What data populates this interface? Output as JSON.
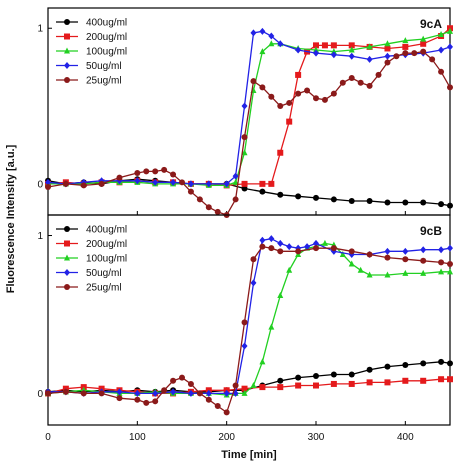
{
  "chart_data": {
    "type": "line",
    "xlabel": "Time [min]",
    "ylabel": "Fluorescence Intensity [a.u.]",
    "x_ticks": [
      0,
      100,
      200,
      300,
      400
    ],
    "xlim": [
      0,
      450
    ],
    "colors": {
      "400ug/ml": "#000000",
      "200ug/ml": "#e41a1c",
      "100ug/ml": "#22d022",
      "50ug/ml": "#2222e6",
      "25ug/ml": "#8b1a1a"
    },
    "panels": [
      {
        "label": "9cA",
        "y_ticks": [
          0,
          1
        ],
        "ylim": [
          -0.2,
          1.13
        ],
        "legend_position": "top-left",
        "series": [
          {
            "name": "400ug/ml",
            "marker": "circle",
            "x": [
              0,
              20,
              40,
              60,
              80,
              100,
              120,
              140,
              160,
              180,
              200,
              220,
              240,
              260,
              280,
              300,
              320,
              340,
              360,
              380,
              400,
              420,
              440,
              450
            ],
            "y": [
              0.02,
              0.0,
              0.01,
              0.0,
              0.02,
              0.03,
              0.02,
              0.01,
              0.0,
              0.0,
              0.0,
              -0.03,
              -0.05,
              -0.07,
              -0.08,
              -0.09,
              -0.1,
              -0.11,
              -0.11,
              -0.12,
              -0.12,
              -0.12,
              -0.13,
              -0.14
            ]
          },
          {
            "name": "200ug/ml",
            "marker": "square",
            "x": [
              0,
              20,
              40,
              60,
              80,
              100,
              120,
              140,
              160,
              180,
              200,
              220,
              240,
              250,
              260,
              270,
              280,
              290,
              300,
              310,
              320,
              340,
              360,
              380,
              400,
              420,
              440,
              450
            ],
            "y": [
              0.0,
              0.01,
              0.0,
              0.01,
              0.01,
              0.02,
              0.01,
              0.01,
              0.0,
              0.0,
              -0.01,
              0.0,
              0.0,
              0.0,
              0.2,
              0.4,
              0.7,
              0.85,
              0.89,
              0.89,
              0.89,
              0.89,
              0.88,
              0.87,
              0.88,
              0.9,
              0.95,
              1.0
            ]
          },
          {
            "name": "100ug/ml",
            "marker": "triangle",
            "x": [
              0,
              20,
              40,
              60,
              80,
              100,
              120,
              140,
              160,
              180,
              200,
              210,
              220,
              230,
              240,
              250,
              260,
              280,
              300,
              320,
              340,
              360,
              380,
              400,
              420,
              440,
              450
            ],
            "y": [
              0.0,
              0.0,
              0.0,
              0.01,
              0.01,
              0.01,
              0.0,
              0.0,
              0.0,
              -0.01,
              -0.01,
              0.01,
              0.2,
              0.6,
              0.85,
              0.9,
              0.9,
              0.87,
              0.86,
              0.85,
              0.86,
              0.88,
              0.9,
              0.92,
              0.93,
              0.96,
              0.98
            ]
          },
          {
            "name": "50ug/ml",
            "marker": "diamond",
            "x": [
              0,
              20,
              40,
              60,
              80,
              100,
              120,
              140,
              160,
              180,
              200,
              210,
              220,
              230,
              240,
              250,
              260,
              280,
              300,
              320,
              340,
              360,
              380,
              400,
              420,
              440,
              450
            ],
            "y": [
              0.01,
              0.0,
              0.01,
              0.02,
              0.02,
              0.02,
              0.01,
              0.01,
              0.0,
              0.0,
              0.0,
              0.05,
              0.5,
              0.97,
              0.98,
              0.95,
              0.9,
              0.86,
              0.84,
              0.83,
              0.82,
              0.8,
              0.82,
              0.83,
              0.84,
              0.86,
              0.88
            ]
          },
          {
            "name": "25ug/ml",
            "marker": "circle",
            "x": [
              0,
              20,
              40,
              60,
              80,
              100,
              110,
              120,
              130,
              140,
              150,
              160,
              170,
              180,
              190,
              200,
              210,
              220,
              230,
              240,
              250,
              260,
              270,
              280,
              290,
              300,
              310,
              320,
              330,
              340,
              350,
              360,
              370,
              380,
              390,
              400,
              410,
              420,
              430,
              440,
              450
            ],
            "y": [
              -0.02,
              0.0,
              -0.01,
              0.0,
              0.04,
              0.07,
              0.08,
              0.08,
              0.09,
              0.06,
              0.01,
              -0.05,
              -0.1,
              -0.15,
              -0.18,
              -0.2,
              -0.1,
              0.3,
              0.66,
              0.62,
              0.56,
              0.5,
              0.52,
              0.58,
              0.6,
              0.55,
              0.54,
              0.58,
              0.65,
              0.68,
              0.65,
              0.63,
              0.7,
              0.78,
              0.82,
              0.84,
              0.84,
              0.85,
              0.8,
              0.72,
              0.62
            ]
          }
        ]
      },
      {
        "label": "9cB",
        "y_ticks": [
          0,
          1
        ],
        "ylim": [
          -0.2,
          1.13
        ],
        "legend_position": "top-left",
        "series": [
          {
            "name": "400ug/ml",
            "marker": "circle",
            "x": [
              0,
              20,
              40,
              60,
              80,
              100,
              120,
              140,
              160,
              180,
              200,
              220,
              240,
              260,
              280,
              300,
              320,
              340,
              360,
              380,
              400,
              420,
              440,
              450
            ],
            "y": [
              0.01,
              0.02,
              0.01,
              0.02,
              0.01,
              0.02,
              0.01,
              0.02,
              0.01,
              0.01,
              0.02,
              0.02,
              0.05,
              0.08,
              0.1,
              0.11,
              0.12,
              0.12,
              0.15,
              0.17,
              0.18,
              0.19,
              0.2,
              0.19
            ]
          },
          {
            "name": "200ug/ml",
            "marker": "square",
            "x": [
              0,
              20,
              40,
              60,
              80,
              100,
              120,
              140,
              160,
              180,
              200,
              220,
              240,
              260,
              280,
              300,
              320,
              340,
              360,
              380,
              400,
              420,
              440,
              450
            ],
            "y": [
              0.0,
              0.03,
              0.04,
              0.03,
              0.02,
              0.01,
              0.0,
              0.0,
              0.01,
              0.02,
              0.02,
              0.03,
              0.04,
              0.04,
              0.05,
              0.05,
              0.06,
              0.06,
              0.07,
              0.07,
              0.08,
              0.08,
              0.09,
              0.09
            ]
          },
          {
            "name": "100ug/ml",
            "marker": "triangle",
            "x": [
              0,
              20,
              40,
              60,
              80,
              100,
              120,
              140,
              160,
              180,
              200,
              210,
              220,
              230,
              240,
              250,
              260,
              270,
              280,
              290,
              300,
              310,
              320,
              330,
              340,
              350,
              360,
              380,
              400,
              420,
              440,
              450
            ],
            "y": [
              0.0,
              0.01,
              0.02,
              0.01,
              0.0,
              0.0,
              0.01,
              0.0,
              0.0,
              0.0,
              -0.01,
              0.0,
              0.0,
              0.05,
              0.2,
              0.42,
              0.62,
              0.78,
              0.88,
              0.92,
              0.93,
              0.95,
              0.94,
              0.88,
              0.82,
              0.78,
              0.75,
              0.75,
              0.76,
              0.76,
              0.77,
              0.77
            ]
          },
          {
            "name": "50ug/ml",
            "marker": "diamond",
            "x": [
              0,
              20,
              40,
              60,
              80,
              100,
              120,
              140,
              160,
              180,
              200,
              210,
              220,
              230,
              240,
              250,
              260,
              270,
              280,
              290,
              300,
              320,
              340,
              360,
              380,
              400,
              420,
              440,
              450
            ],
            "y": [
              0.01,
              0.01,
              0.0,
              0.01,
              0.01,
              0.0,
              0.0,
              0.01,
              0.0,
              0.0,
              0.0,
              0.0,
              0.3,
              0.7,
              0.97,
              0.98,
              0.95,
              0.93,
              0.92,
              0.93,
              0.95,
              0.9,
              0.88,
              0.88,
              0.9,
              0.9,
              0.91,
              0.91,
              0.92
            ]
          },
          {
            "name": "25ug/ml",
            "marker": "circle",
            "x": [
              0,
              20,
              40,
              60,
              80,
              100,
              110,
              120,
              130,
              140,
              150,
              160,
              170,
              180,
              190,
              200,
              210,
              220,
              230,
              240,
              250,
              260,
              280,
              300,
              320,
              340,
              360,
              380,
              400,
              420,
              440,
              450
            ],
            "y": [
              0.0,
              0.01,
              0.0,
              0.0,
              -0.03,
              -0.04,
              -0.06,
              -0.05,
              0.02,
              0.08,
              0.1,
              0.06,
              0.0,
              -0.04,
              -0.08,
              -0.12,
              0.05,
              0.45,
              0.85,
              0.93,
              0.92,
              0.9,
              0.9,
              0.92,
              0.92,
              0.9,
              0.88,
              0.86,
              0.85,
              0.84,
              0.83,
              0.82
            ]
          }
        ]
      }
    ]
  }
}
